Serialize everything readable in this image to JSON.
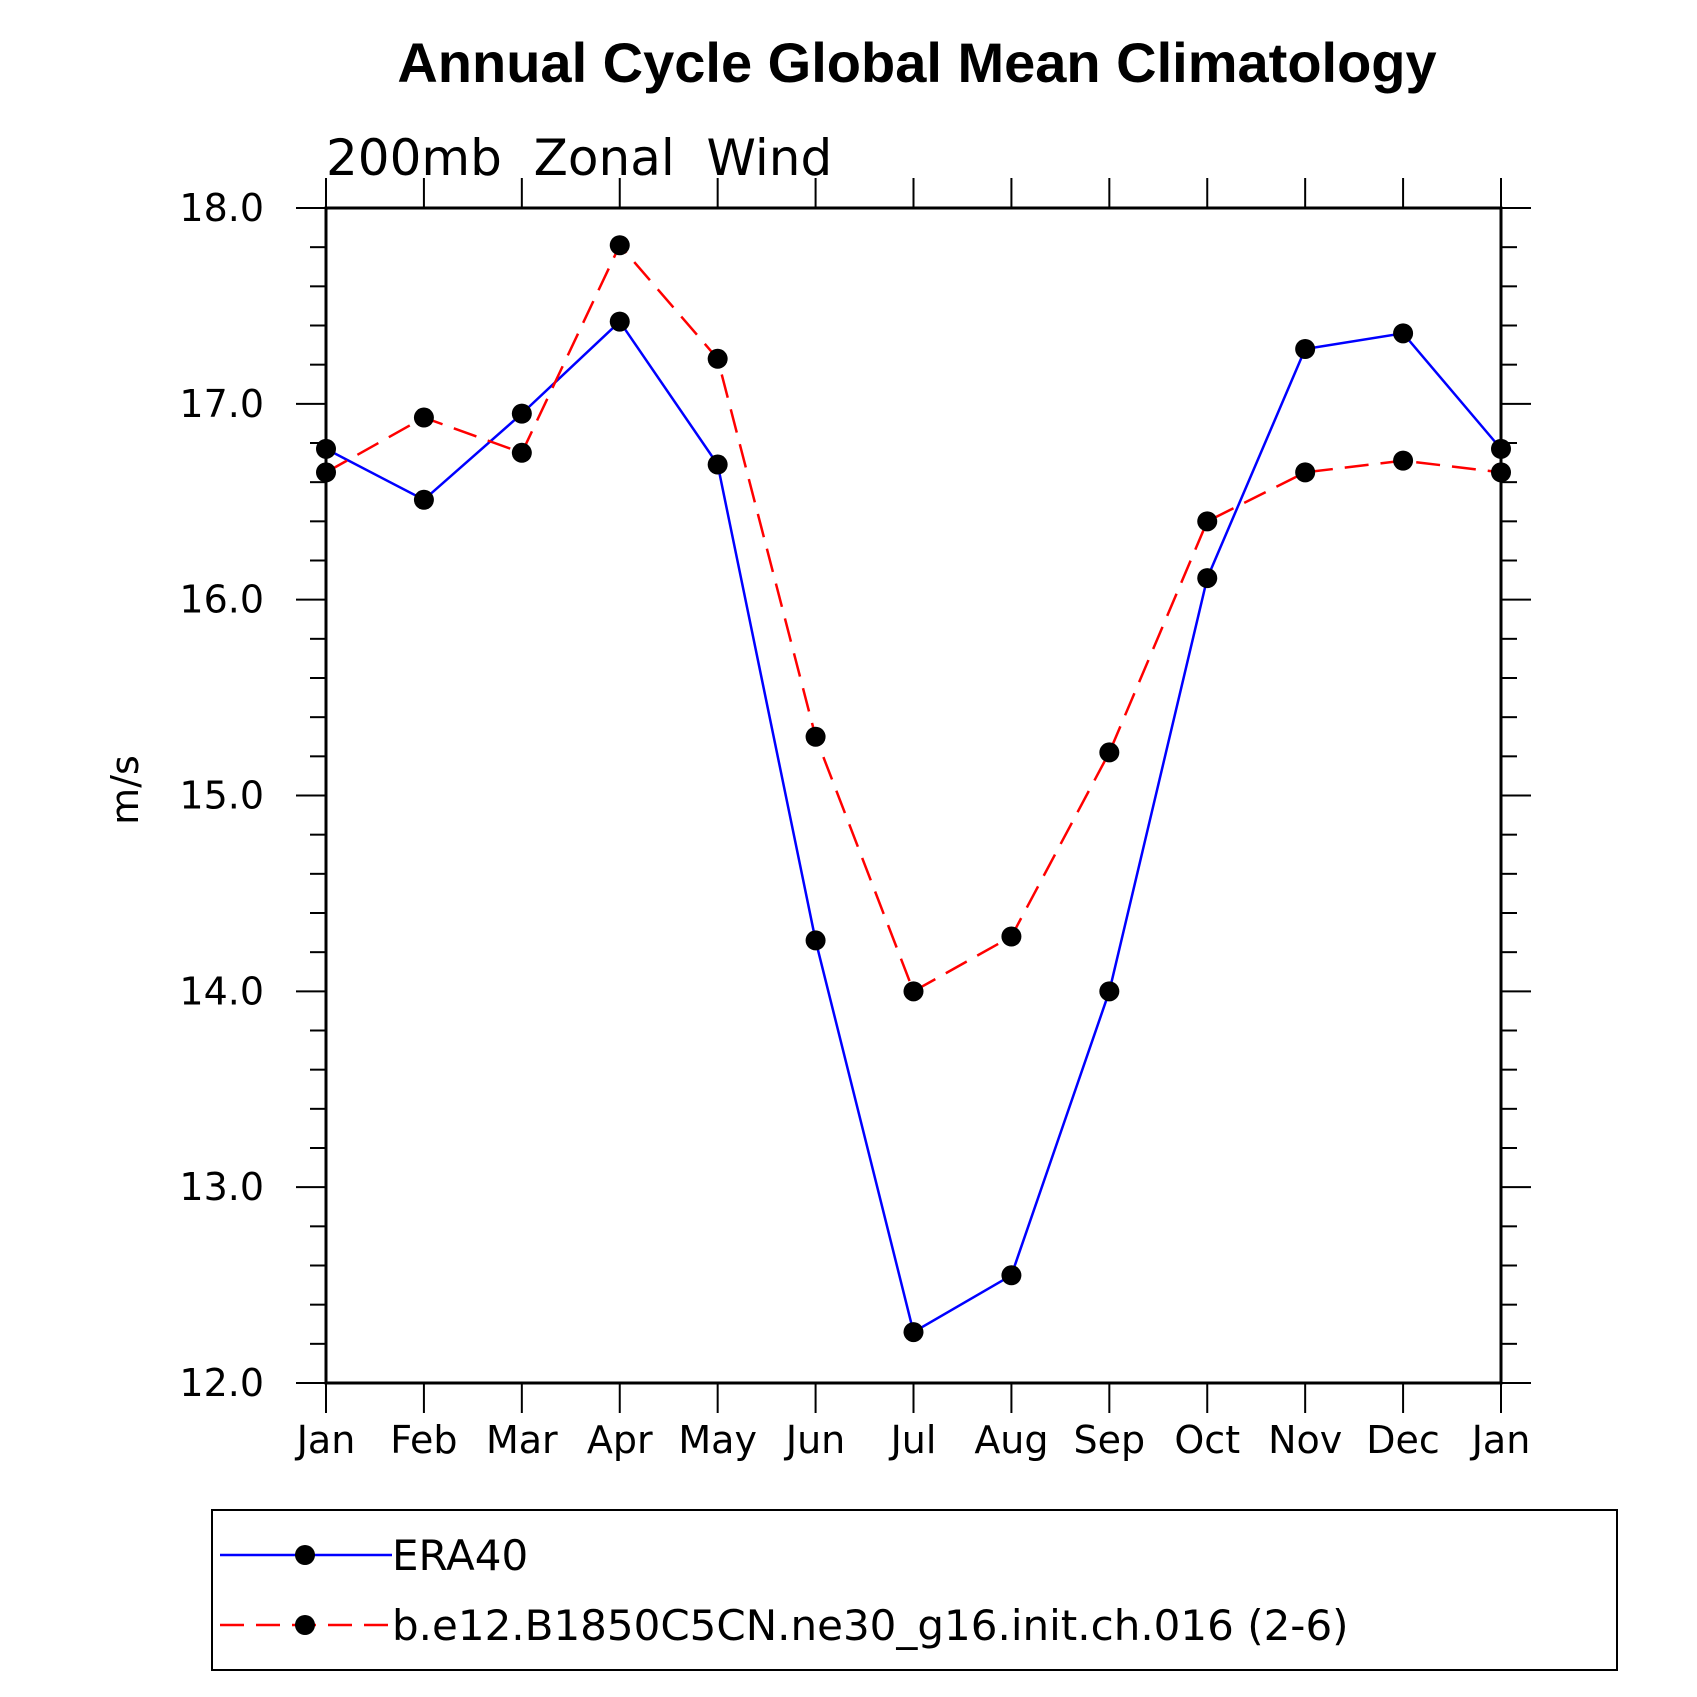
{
  "chart_data": {
    "type": "line",
    "title": "Annual Cycle Global Mean Climatology",
    "subtitle": "200mb  Zonal  Wind",
    "xlabel": "",
    "ylabel": "m/s",
    "categories": [
      "Jan",
      "Feb",
      "Mar",
      "Apr",
      "May",
      "Jun",
      "Jul",
      "Aug",
      "Sep",
      "Oct",
      "Nov",
      "Dec",
      "Jan"
    ],
    "ylim": [
      12.0,
      18.0
    ],
    "yticks": [
      "12.0",
      "13.0",
      "14.0",
      "15.0",
      "16.0",
      "17.0",
      "18.0"
    ],
    "grid": false,
    "legend_position": "bottom",
    "series": [
      {
        "name": "ERA40",
        "color": "#0000ff",
        "dash": "solid",
        "marker": "filled-circle",
        "values": [
          16.77,
          16.51,
          16.95,
          17.42,
          16.69,
          14.26,
          12.26,
          12.55,
          14.0,
          16.11,
          17.28,
          17.36,
          16.77
        ]
      },
      {
        "name": "b.e12.B1850C5CN.ne30_g16.init.ch.016 (2-6)",
        "color": "#ff0000",
        "dash": "dashed",
        "marker": "filled-circle",
        "values": [
          16.65,
          16.93,
          16.75,
          17.81,
          17.23,
          15.3,
          14.0,
          14.28,
          15.22,
          16.4,
          16.65,
          16.71,
          16.65
        ]
      }
    ]
  }
}
